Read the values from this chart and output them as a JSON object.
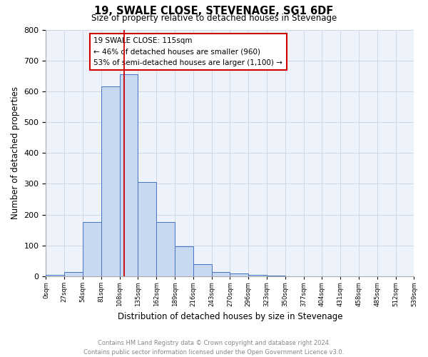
{
  "title": "19, SWALE CLOSE, STEVENAGE, SG1 6DF",
  "subtitle": "Size of property relative to detached houses in Stevenage",
  "xlabel": "Distribution of detached houses by size in Stevenage",
  "ylabel": "Number of detached properties",
  "bin_edges": [
    0,
    27,
    54,
    81,
    108,
    135,
    162,
    189,
    216,
    243,
    270,
    297,
    324,
    351,
    378,
    405,
    432,
    459,
    486,
    513,
    540
  ],
  "bar_heights": [
    5,
    13,
    175,
    615,
    655,
    305,
    175,
    97,
    40,
    13,
    10,
    5,
    2,
    0,
    0,
    0,
    0,
    0,
    0,
    0
  ],
  "bar_color": "#c6d9f0",
  "bar_edge_color": "#4472c4",
  "vline_x": 115,
  "vline_color": "#cc0000",
  "annotation_line1": "19 SWALE CLOSE: 115sqm",
  "annotation_line2": "← 46% of detached houses are smaller (960)",
  "annotation_line3": "53% of semi-detached houses are larger (1,100) →",
  "annotation_box_color": "#cc0000",
  "ylim": [
    0,
    800
  ],
  "xlim": [
    0,
    540
  ],
  "yticks": [
    0,
    100,
    200,
    300,
    400,
    500,
    600,
    700,
    800
  ],
  "xtick_labels": [
    "0sqm",
    "27sqm",
    "54sqm",
    "81sqm",
    "108sqm",
    "135sqm",
    "162sqm",
    "189sqm",
    "216sqm",
    "243sqm",
    "270sqm",
    "296sqm",
    "323sqm",
    "350sqm",
    "377sqm",
    "404sqm",
    "431sqm",
    "458sqm",
    "485sqm",
    "512sqm",
    "539sqm"
  ],
  "grid_color": "#d0d8e8",
  "background_color": "#eef2fa",
  "footer_line1": "Contains HM Land Registry data © Crown copyright and database right 2024.",
  "footer_line2": "Contains public sector information licensed under the Open Government Licence v3.0.",
  "footer_color": "#888888"
}
